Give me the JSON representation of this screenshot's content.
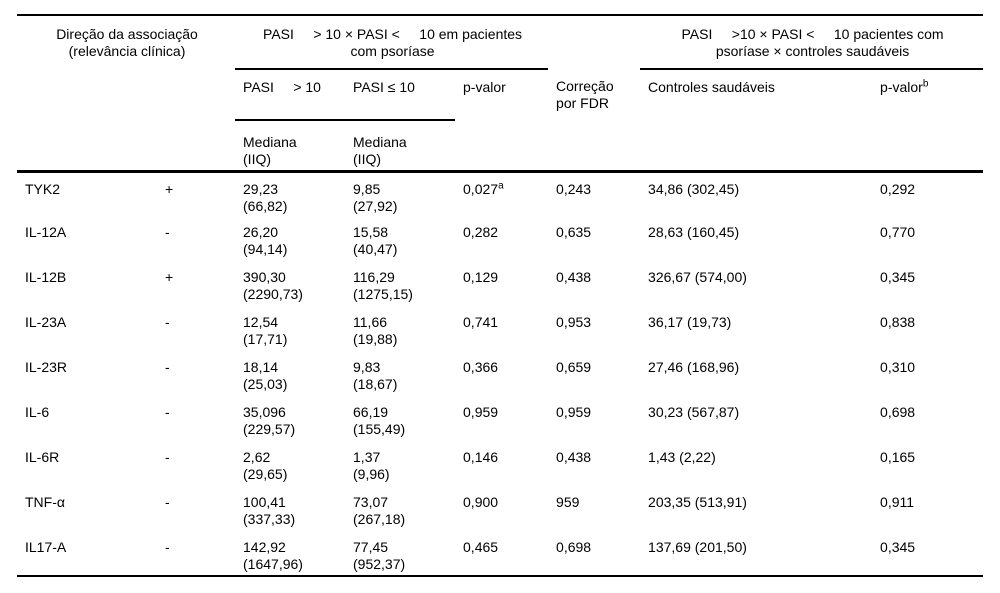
{
  "page": {
    "background": "#ffffff",
    "text_color": "#000000"
  },
  "table": {
    "header": {
      "direction": "Direção da associação\n(relevância clínica)",
      "span_patients": "PASI     > 10 × PASI <     10 em pacientes\ncom psoríase",
      "span_controls": "PASI     >10 × PASI <     10 pacientes com\npsoríase × controles saudáveis",
      "pasi_gt10": "PASI     > 10",
      "pasi_le10": "PASI ≤ 10",
      "p_valor": "p-valor",
      "fdr": "Correção\npor FDR",
      "controles": "Controles saudáveis",
      "p_valor_b": "p-valor",
      "p_valor_b_sup": "b",
      "mediana_gt10": "Mediana\n(IIQ)",
      "mediana_le10": "Mediana\n(IIQ)"
    },
    "rows": [
      {
        "gene": "TYK2",
        "direction": "+",
        "pasi_gt10": "29,23\n(66,82)",
        "pasi_le10": "9,85\n(27,92)",
        "p_valor": "0,027",
        "p_valor_sup": "a",
        "fdr": "0,243",
        "controles": "34,86 (302,45)",
        "p_valor_b": "0,292"
      },
      {
        "gene": "IL-12A",
        "direction": "-",
        "pasi_gt10": "26,20\n(94,14)",
        "pasi_le10": "15,58\n(40,47)",
        "p_valor": "0,282",
        "p_valor_sup": "",
        "fdr": "0,635",
        "controles": "28,63 (160,45)",
        "p_valor_b": "0,770"
      },
      {
        "gene": "IL-12B",
        "direction": "+",
        "pasi_gt10": "390,30\n(2290,73)",
        "pasi_le10": "116,29\n(1275,15)",
        "p_valor": "0,129",
        "p_valor_sup": "",
        "fdr": "0,438",
        "controles": "326,67 (574,00)",
        "p_valor_b": "0,345"
      },
      {
        "gene": "IL-23A",
        "direction": "-",
        "pasi_gt10": "12,54\n(17,71)",
        "pasi_le10": "11,66\n(19,88)",
        "p_valor": "0,741",
        "p_valor_sup": "",
        "fdr": "0,953",
        "controles": "36,17 (19,73)",
        "p_valor_b": "0,838"
      },
      {
        "gene": "IL-23R",
        "direction": "-",
        "pasi_gt10": "18,14\n(25,03)",
        "pasi_le10": "9,83\n(18,67)",
        "p_valor": "0,366",
        "p_valor_sup": "",
        "fdr": "0,659",
        "controles": "27,46 (168,96)",
        "p_valor_b": "0,310"
      },
      {
        "gene": "IL-6",
        "direction": "-",
        "pasi_gt10": "35,096\n(229,57)",
        "pasi_le10": "66,19\n(155,49)",
        "p_valor": "0,959",
        "p_valor_sup": "",
        "fdr": "0,959",
        "controles": "30,23 (567,87)",
        "p_valor_b": "0,698"
      },
      {
        "gene": "IL-6R",
        "direction": "-",
        "pasi_gt10": "2,62\n(29,65)",
        "pasi_le10": "1,37\n(9,96)",
        "p_valor": "0,146",
        "p_valor_sup": "",
        "fdr": "0,438",
        "controles": "1,43 (2,22)",
        "p_valor_b": "0,165"
      },
      {
        "gene": "TNF-α",
        "direction": "-",
        "pasi_gt10": "100,41\n(337,33)",
        "pasi_le10": "73,07\n(267,18)",
        "p_valor": "0,900",
        "p_valor_sup": "",
        "fdr": "959",
        "controles": "203,35 (513,91)",
        "p_valor_b": "0,911"
      },
      {
        "gene": "IL17-A",
        "direction": "-",
        "pasi_gt10": "142,92\n(1647,96)",
        "pasi_le10": "77,45\n(952,37)",
        "p_valor": "0,465",
        "p_valor_sup": "",
        "fdr": "0,698",
        "controles": "137,69 (201,50)",
        "p_valor_b": "0,345"
      }
    ]
  }
}
